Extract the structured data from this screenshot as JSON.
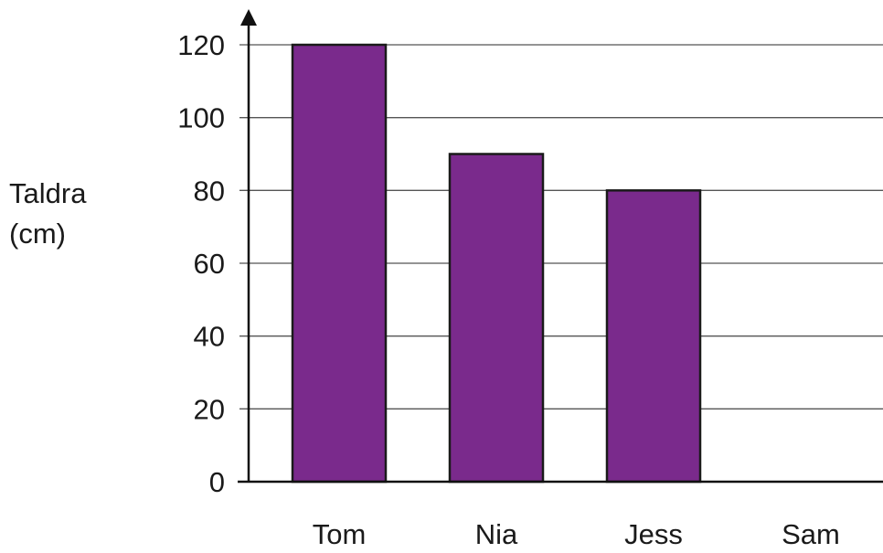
{
  "chart_data": {
    "type": "bar",
    "categories": [
      "Tom",
      "Nia",
      "Jess",
      "Sam"
    ],
    "values": [
      120,
      90,
      80,
      null
    ],
    "ylabel_lines": [
      "Taldra",
      "(cm)"
    ],
    "yticks": [
      "0",
      "20",
      "40",
      "60",
      "80",
      "100",
      "120"
    ],
    "ylim": [
      0,
      120
    ],
    "grid": true,
    "bar_color": "#7a2a8c"
  }
}
